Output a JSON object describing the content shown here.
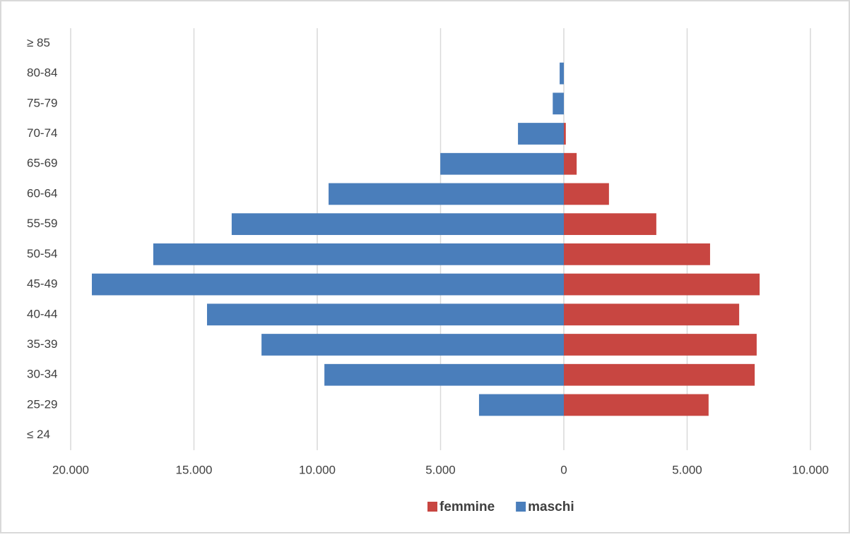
{
  "chart_data": {
    "type": "pyramid",
    "categories": [
      "≤ 24",
      "25-29",
      "30-34",
      "35-39",
      "40-44",
      "45-49",
      "50-54",
      "55-59",
      "60-64",
      "65-69",
      "70-74",
      "75-79",
      "80-84",
      "≥ 85"
    ],
    "series": [
      {
        "name": "femmine",
        "color": "#c84641",
        "values": [
          0,
          5870,
          7740,
          7820,
          7110,
          7940,
          5930,
          3750,
          1830,
          520,
          80,
          0,
          0,
          0
        ]
      },
      {
        "name": "maschi",
        "color": "#4a7ebb",
        "values": [
          0,
          -3440,
          -9710,
          -12260,
          -14470,
          -19140,
          -16650,
          -13470,
          -9540,
          -5010,
          -1860,
          -450,
          -170,
          0
        ]
      }
    ],
    "xlim": [
      -20000,
      10000
    ],
    "xticks": [
      {
        "value": -20000,
        "label": "20.000"
      },
      {
        "value": -15000,
        "label": "15.000"
      },
      {
        "value": -10000,
        "label": "10.000"
      },
      {
        "value": -5000,
        "label": "5.000"
      },
      0,
      {
        "value": 5000,
        "label": "5.000"
      },
      {
        "value": 10000,
        "label": "10.000"
      }
    ],
    "grid": true,
    "legend": "bottom"
  }
}
